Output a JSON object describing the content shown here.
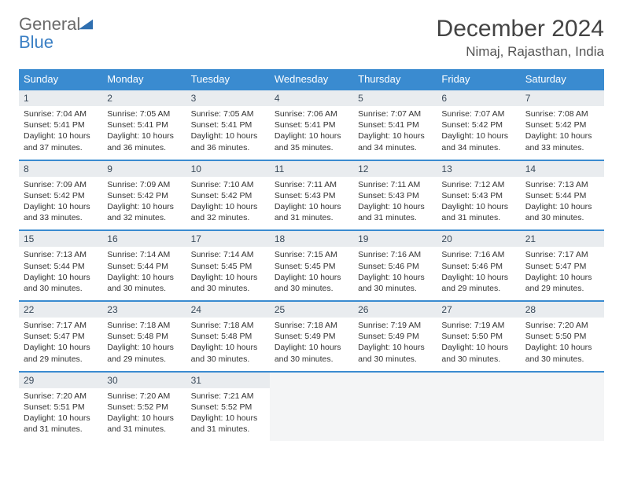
{
  "logo": {
    "text1": "General",
    "text2": "Blue"
  },
  "title": "December 2024",
  "location": "Nimaj, Rajasthan, India",
  "colors": {
    "header_bg": "#3a8bd0",
    "row_border": "#3a8bd0",
    "daynum_bg": "#e9ecef",
    "text": "#333333",
    "logo_gray": "#6a6a6a",
    "logo_blue": "#3a7fc4"
  },
  "weekdays": [
    "Sunday",
    "Monday",
    "Tuesday",
    "Wednesday",
    "Thursday",
    "Friday",
    "Saturday"
  ],
  "weeks": [
    [
      {
        "n": "1",
        "sr": "Sunrise: 7:04 AM",
        "ss": "Sunset: 5:41 PM",
        "dl": "Daylight: 10 hours and 37 minutes."
      },
      {
        "n": "2",
        "sr": "Sunrise: 7:05 AM",
        "ss": "Sunset: 5:41 PM",
        "dl": "Daylight: 10 hours and 36 minutes."
      },
      {
        "n": "3",
        "sr": "Sunrise: 7:05 AM",
        "ss": "Sunset: 5:41 PM",
        "dl": "Daylight: 10 hours and 36 minutes."
      },
      {
        "n": "4",
        "sr": "Sunrise: 7:06 AM",
        "ss": "Sunset: 5:41 PM",
        "dl": "Daylight: 10 hours and 35 minutes."
      },
      {
        "n": "5",
        "sr": "Sunrise: 7:07 AM",
        "ss": "Sunset: 5:41 PM",
        "dl": "Daylight: 10 hours and 34 minutes."
      },
      {
        "n": "6",
        "sr": "Sunrise: 7:07 AM",
        "ss": "Sunset: 5:42 PM",
        "dl": "Daylight: 10 hours and 34 minutes."
      },
      {
        "n": "7",
        "sr": "Sunrise: 7:08 AM",
        "ss": "Sunset: 5:42 PM",
        "dl": "Daylight: 10 hours and 33 minutes."
      }
    ],
    [
      {
        "n": "8",
        "sr": "Sunrise: 7:09 AM",
        "ss": "Sunset: 5:42 PM",
        "dl": "Daylight: 10 hours and 33 minutes."
      },
      {
        "n": "9",
        "sr": "Sunrise: 7:09 AM",
        "ss": "Sunset: 5:42 PM",
        "dl": "Daylight: 10 hours and 32 minutes."
      },
      {
        "n": "10",
        "sr": "Sunrise: 7:10 AM",
        "ss": "Sunset: 5:42 PM",
        "dl": "Daylight: 10 hours and 32 minutes."
      },
      {
        "n": "11",
        "sr": "Sunrise: 7:11 AM",
        "ss": "Sunset: 5:43 PM",
        "dl": "Daylight: 10 hours and 31 minutes."
      },
      {
        "n": "12",
        "sr": "Sunrise: 7:11 AM",
        "ss": "Sunset: 5:43 PM",
        "dl": "Daylight: 10 hours and 31 minutes."
      },
      {
        "n": "13",
        "sr": "Sunrise: 7:12 AM",
        "ss": "Sunset: 5:43 PM",
        "dl": "Daylight: 10 hours and 31 minutes."
      },
      {
        "n": "14",
        "sr": "Sunrise: 7:13 AM",
        "ss": "Sunset: 5:44 PM",
        "dl": "Daylight: 10 hours and 30 minutes."
      }
    ],
    [
      {
        "n": "15",
        "sr": "Sunrise: 7:13 AM",
        "ss": "Sunset: 5:44 PM",
        "dl": "Daylight: 10 hours and 30 minutes."
      },
      {
        "n": "16",
        "sr": "Sunrise: 7:14 AM",
        "ss": "Sunset: 5:44 PM",
        "dl": "Daylight: 10 hours and 30 minutes."
      },
      {
        "n": "17",
        "sr": "Sunrise: 7:14 AM",
        "ss": "Sunset: 5:45 PM",
        "dl": "Daylight: 10 hours and 30 minutes."
      },
      {
        "n": "18",
        "sr": "Sunrise: 7:15 AM",
        "ss": "Sunset: 5:45 PM",
        "dl": "Daylight: 10 hours and 30 minutes."
      },
      {
        "n": "19",
        "sr": "Sunrise: 7:16 AM",
        "ss": "Sunset: 5:46 PM",
        "dl": "Daylight: 10 hours and 30 minutes."
      },
      {
        "n": "20",
        "sr": "Sunrise: 7:16 AM",
        "ss": "Sunset: 5:46 PM",
        "dl": "Daylight: 10 hours and 29 minutes."
      },
      {
        "n": "21",
        "sr": "Sunrise: 7:17 AM",
        "ss": "Sunset: 5:47 PM",
        "dl": "Daylight: 10 hours and 29 minutes."
      }
    ],
    [
      {
        "n": "22",
        "sr": "Sunrise: 7:17 AM",
        "ss": "Sunset: 5:47 PM",
        "dl": "Daylight: 10 hours and 29 minutes."
      },
      {
        "n": "23",
        "sr": "Sunrise: 7:18 AM",
        "ss": "Sunset: 5:48 PM",
        "dl": "Daylight: 10 hours and 29 minutes."
      },
      {
        "n": "24",
        "sr": "Sunrise: 7:18 AM",
        "ss": "Sunset: 5:48 PM",
        "dl": "Daylight: 10 hours and 30 minutes."
      },
      {
        "n": "25",
        "sr": "Sunrise: 7:18 AM",
        "ss": "Sunset: 5:49 PM",
        "dl": "Daylight: 10 hours and 30 minutes."
      },
      {
        "n": "26",
        "sr": "Sunrise: 7:19 AM",
        "ss": "Sunset: 5:49 PM",
        "dl": "Daylight: 10 hours and 30 minutes."
      },
      {
        "n": "27",
        "sr": "Sunrise: 7:19 AM",
        "ss": "Sunset: 5:50 PM",
        "dl": "Daylight: 10 hours and 30 minutes."
      },
      {
        "n": "28",
        "sr": "Sunrise: 7:20 AM",
        "ss": "Sunset: 5:50 PM",
        "dl": "Daylight: 10 hours and 30 minutes."
      }
    ],
    [
      {
        "n": "29",
        "sr": "Sunrise: 7:20 AM",
        "ss": "Sunset: 5:51 PM",
        "dl": "Daylight: 10 hours and 31 minutes."
      },
      {
        "n": "30",
        "sr": "Sunrise: 7:20 AM",
        "ss": "Sunset: 5:52 PM",
        "dl": "Daylight: 10 hours and 31 minutes."
      },
      {
        "n": "31",
        "sr": "Sunrise: 7:21 AM",
        "ss": "Sunset: 5:52 PM",
        "dl": "Daylight: 10 hours and 31 minutes."
      },
      null,
      null,
      null,
      null
    ]
  ]
}
